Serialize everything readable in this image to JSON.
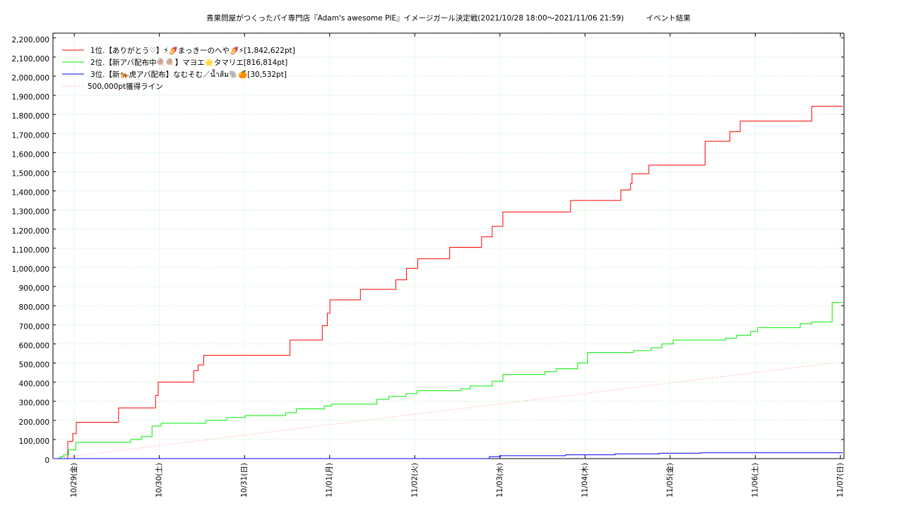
{
  "chart_data": {
    "type": "line",
    "title": "青果問屋がつくったパイ専門店『Adam's awesome PIE』イメージガール決定戦(2021/10/28 18:00～2021/11/06 21:59)　　　イベント結果",
    "step": "post",
    "grid": true,
    "legend": "upper left",
    "xlim": [
      "10/28 18:00",
      "11/07 01:00"
    ],
    "xticks": [
      {
        "value": "10/29 00:00",
        "label": "10/29(金)"
      },
      {
        "value": "10/30 00:00",
        "label": "10/30(土)"
      },
      {
        "value": "10/31 00:00",
        "label": "10/31(日)"
      },
      {
        "value": "11/01 00:00",
        "label": "11/01(月)"
      },
      {
        "value": "11/02 00:00",
        "label": "11/02(火)"
      },
      {
        "value": "11/03 00:00",
        "label": "11/03(水)"
      },
      {
        "value": "11/04 00:00",
        "label": "11/04(木)"
      },
      {
        "value": "11/05 00:00",
        "label": "11/05(金)"
      },
      {
        "value": "11/06 00:00",
        "label": "11/06(土)"
      },
      {
        "value": "11/07 00:00",
        "label": "11/07(日)"
      }
    ],
    "ylim": [
      0,
      2225000
    ],
    "yticks": [
      0,
      {
        "value": 100000,
        "label": "100,000"
      },
      {
        "value": 200000,
        "label": "200,000"
      },
      {
        "value": 300000,
        "label": "300,000"
      },
      {
        "value": 400000,
        "label": "400,000"
      },
      {
        "value": 500000,
        "label": "500,000"
      },
      {
        "value": 600000,
        "label": "600,000"
      },
      {
        "value": 700000,
        "label": "700,000"
      },
      {
        "value": 800000,
        "label": "800,000"
      },
      {
        "value": 900000,
        "label": "900,000"
      },
      {
        "value": 1000000,
        "label": "1,000,000"
      },
      {
        "value": 1100000,
        "label": "1,100,000"
      },
      {
        "value": 1200000,
        "label": "1,200,000"
      },
      {
        "value": 1300000,
        "label": "1,300,000"
      },
      {
        "value": 1400000,
        "label": "1,400,000"
      },
      {
        "value": 1500000,
        "label": "1,500,000"
      },
      {
        "value": 1600000,
        "label": "1,600,000"
      },
      {
        "value": 1700000,
        "label": "1,700,000"
      },
      {
        "value": 1800000,
        "label": "1,800,000"
      },
      {
        "value": 1900000,
        "label": "1,900,000"
      },
      {
        "value": 2000000,
        "label": "2,000,000"
      },
      {
        "value": 2100000,
        "label": "2,100,000"
      },
      {
        "value": 2200000,
        "label": "2,200,000"
      }
    ],
    "series": [
      {
        "name": "1位.【ありがとう♡】⚡🍠まっきーのへや🍠⚡[1,842,622pt]",
        "color": "#ff0000",
        "x": [
          "10/28 18:00",
          "10/28 22:10",
          "10/28 23:35",
          "10/29 00:35",
          "10/29 12:30",
          "10/29 22:55",
          "10/29 23:40",
          "10/30 09:40",
          "10/30 10:55",
          "10/30 12:30",
          "10/31 12:50",
          "10/31 21:55",
          "10/31 23:20",
          "11/01 00:05",
          "11/01 08:40",
          "11/01 18:40",
          "11/01 21:40",
          "11/02 00:50",
          "11/02 09:50",
          "11/02 18:50",
          "11/02 21:50",
          "11/03 00:50",
          "11/03 19:55",
          "11/04 10:05",
          "11/04 12:50",
          "11/04 13:15",
          "11/04 18:00",
          "11/05 09:50",
          "11/05 16:50",
          "11/05 19:45",
          "11/06 15:55",
          "11/07 00:40"
        ],
        "values": [
          0,
          90000,
          130000,
          190000,
          265000,
          330000,
          400000,
          460000,
          490000,
          540000,
          620000,
          695000,
          760000,
          830000,
          885000,
          935000,
          995000,
          1045000,
          1105000,
          1160000,
          1215000,
          1290000,
          1350000,
          1405000,
          1440000,
          1490000,
          1535000,
          1660000,
          1710000,
          1765000,
          1842622,
          1842622
        ]
      },
      {
        "name": "2位.【新アバ配布中🍭🍭】マヨエ🌟タマリエ[816,814pt]",
        "color": "#00ee00",
        "x": [
          "10/28 18:00",
          "10/28 20:00",
          "10/28 21:00",
          "10/28 22:25",
          "10/29 00:25",
          "10/29 15:55",
          "10/29 18:55",
          "10/29 21:55",
          "10/30 00:30",
          "10/30 13:05",
          "10/30 19:00",
          "10/31 00:10",
          "10/31 11:35",
          "10/31 14:35",
          "10/31 22:30",
          "11/01 00:30",
          "11/01 13:20",
          "11/01 16:40",
          "11/01 21:30",
          "11/02 00:40",
          "11/02 13:00",
          "11/02 15:35",
          "11/02 21:50",
          "11/03 00:50",
          "11/03 12:40",
          "11/03 15:55",
          "11/03 21:55",
          "11/04 00:40",
          "11/04 13:40",
          "11/04 18:40",
          "11/04 21:40",
          "11/05 00:50",
          "11/05 15:35",
          "11/05 18:40",
          "11/05 22:40",
          "11/06 00:40",
          "11/06 12:40",
          "11/06 15:55",
          "11/06 21:40",
          "11/07 00:40"
        ],
        "values": [
          0,
          10000,
          20000,
          45000,
          85000,
          100000,
          115000,
          170000,
          185000,
          200000,
          215000,
          225000,
          240000,
          260000,
          275000,
          285000,
          310000,
          325000,
          340000,
          355000,
          365000,
          380000,
          405000,
          440000,
          455000,
          470000,
          500000,
          555000,
          565000,
          580000,
          600000,
          620000,
          630000,
          645000,
          665000,
          685000,
          705000,
          715000,
          816814,
          816814
        ]
      },
      {
        "name": "3位.【新🐅虎アバ配布】なむそむ／น้ำส้ม🐘🍊[30,532pt]",
        "color": "#0000ff",
        "x": [
          "10/28 18:00",
          "11/02 20:10",
          "11/02 21:00",
          "11/03 00:10",
          "11/03 18:30",
          "11/04 08:30",
          "11/04 20:50",
          "11/05 08:25",
          "11/07 00:40"
        ],
        "values": [
          0,
          0,
          10000,
          15000,
          20000,
          25000,
          28000,
          30532,
          30532
        ]
      },
      {
        "name": "500,000pt獲得ライン",
        "color": "#ff8080",
        "dashed": true,
        "x": [
          "10/28 18:00",
          "11/06 22:00"
        ],
        "values": [
          0,
          500000
        ]
      }
    ]
  }
}
